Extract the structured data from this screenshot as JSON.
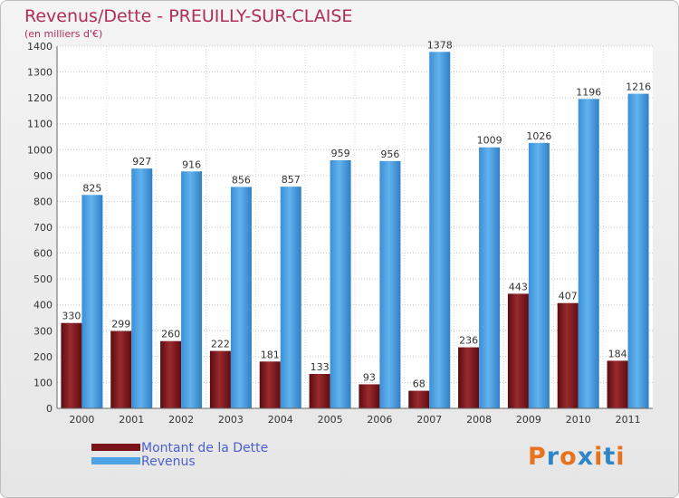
{
  "header": {
    "title": "Revenus/Dette - PREUILLY-SUR-CLAISE",
    "subtitle": "(en milliers d'€)"
  },
  "colors": {
    "dette": "#7a1418",
    "revenus": "#4fa3e4",
    "title": "#b02c5a",
    "legend_text": "#4a5fd1"
  },
  "logo": {
    "text": "Proxiti",
    "letter_colors": [
      "#e8731c",
      "#2e86c8",
      "#e8731c",
      "#2e86c8",
      "#e8731c",
      "#2e86c8",
      "#e8731c"
    ]
  },
  "chart_data": {
    "type": "bar",
    "categories": [
      "2000",
      "2001",
      "2002",
      "2003",
      "2004",
      "2005",
      "2006",
      "2007",
      "2008",
      "2009",
      "2010",
      "2011"
    ],
    "series": [
      {
        "name": "Montant de la Dette",
        "values": [
          330,
          299,
          260,
          222,
          181,
          133,
          93,
          68,
          236,
          443,
          407,
          184
        ]
      },
      {
        "name": "Revenus",
        "values": [
          825,
          927,
          916,
          856,
          857,
          959,
          956,
          1378,
          1009,
          1026,
          1196,
          1216
        ]
      }
    ],
    "title": "Revenus/Dette - PREUILLY-SUR-CLAISE",
    "ylabel": "(en milliers d'€)",
    "xlabel": "",
    "ylim": [
      0,
      1400
    ],
    "yticks": [
      0,
      100,
      200,
      300,
      400,
      500,
      600,
      700,
      800,
      900,
      1000,
      1100,
      1200,
      1300,
      1400
    ],
    "grid": true,
    "legend": "bottom-left"
  }
}
